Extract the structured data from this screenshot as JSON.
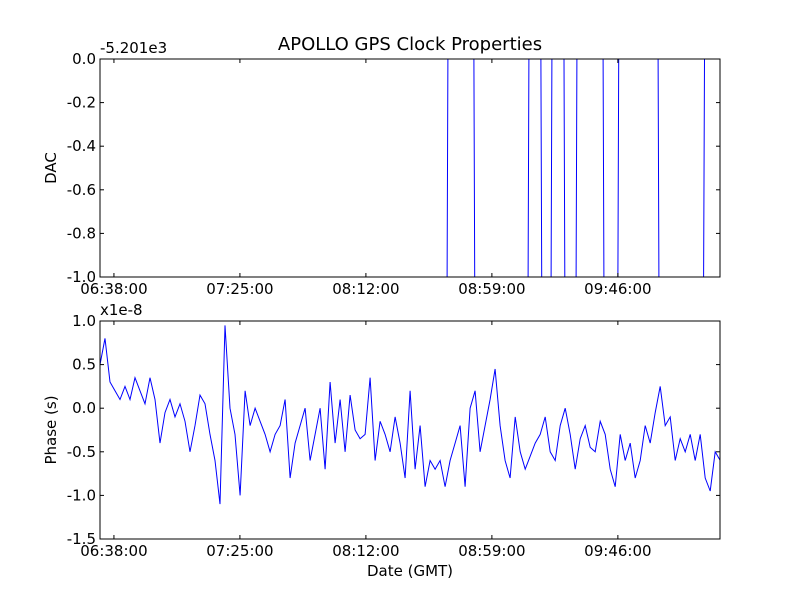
{
  "chart_data": [
    {
      "type": "line",
      "title": "APOLLO GPS Clock Properties",
      "ylabel": "DAC",
      "xlabel": "",
      "offset_text": "-5.201e3",
      "x_units": "minutes since 06:38:00",
      "xlim": [
        -5.2,
        226.1
      ],
      "ylim": [
        -1.0,
        0.0
      ],
      "yticks": [
        0.0,
        -0.2,
        -0.4,
        -0.6,
        -0.8,
        -1.0
      ],
      "ytick_labels": [
        "0.0",
        "-0.2",
        "-0.4",
        "-0.6",
        "-0.8",
        "-1.0"
      ],
      "xticks": [
        0,
        47,
        94,
        141,
        188
      ],
      "xtick_labels": [
        "06:38:00",
        "07:25:00",
        "08:12:00",
        "08:59:00",
        "09:46:00"
      ],
      "color": "#0000ff",
      "series": [
        {
          "name": "DAC",
          "points": [
            [
              -5.2,
              -1
            ],
            [
              124.3,
              -1
            ],
            [
              124.6,
              0
            ],
            [
              134.3,
              0
            ],
            [
              134.6,
              -1
            ],
            [
              154.5,
              -1
            ],
            [
              154.8,
              0
            ],
            [
              159.3,
              0
            ],
            [
              159.6,
              -1
            ],
            [
              163.1,
              -1
            ],
            [
              163.4,
              0
            ],
            [
              167.9,
              0
            ],
            [
              168.2,
              -1
            ],
            [
              172.4,
              -1
            ],
            [
              172.7,
              0
            ],
            [
              182.5,
              0
            ],
            [
              182.8,
              -1
            ],
            [
              188,
              -1
            ],
            [
              188.3,
              0
            ],
            [
              203,
              0
            ],
            [
              203.3,
              -1
            ],
            [
              220,
              -1
            ],
            [
              220.3,
              0
            ],
            [
              226.1,
              0
            ]
          ]
        }
      ]
    },
    {
      "type": "line",
      "title": "",
      "ylabel": "Phase (s)",
      "xlabel": "Date (GMT)",
      "offset_text": "x1e-8",
      "x_units": "minutes since 06:38:00",
      "xlim": [
        -5.2,
        226.1
      ],
      "ylim": [
        -1.5,
        1.0
      ],
      "yticks": [
        1.0,
        0.5,
        0.0,
        -0.5,
        -1.0,
        -1.5
      ],
      "ytick_labels": [
        "1.0",
        "0.5",
        "0.0",
        "-0.5",
        "-1.0",
        "-1.5"
      ],
      "xticks": [
        0,
        47,
        94,
        141,
        188
      ],
      "xtick_labels": [
        "06:38:00",
        "07:25:00",
        "08:12:00",
        "08:59:00",
        "09:46:00"
      ],
      "color": "#0000ff",
      "series": [
        {
          "name": "Phase",
          "x_start": -5.2,
          "x_step": 1.866,
          "values": [
            0.5,
            0.8,
            0.3,
            0.2,
            0.1,
            0.25,
            0.1,
            0.35,
            0.2,
            0.05,
            0.35,
            0.1,
            -0.4,
            -0.05,
            0.1,
            -0.1,
            0.05,
            -0.15,
            -0.5,
            -0.2,
            0.15,
            0.05,
            -0.3,
            -0.6,
            -1.1,
            0.95,
            0.0,
            -0.3,
            -1.0,
            0.2,
            -0.2,
            0.0,
            -0.15,
            -0.3,
            -0.5,
            -0.3,
            -0.2,
            0.1,
            -0.8,
            -0.4,
            -0.2,
            0.0,
            -0.6,
            -0.3,
            0.0,
            -0.7,
            0.3,
            -0.4,
            0.1,
            -0.5,
            0.15,
            -0.25,
            -0.35,
            -0.3,
            0.35,
            -0.6,
            -0.15,
            -0.3,
            -0.5,
            -0.1,
            -0.4,
            -0.8,
            0.2,
            -0.7,
            -0.2,
            -0.9,
            -0.6,
            -0.7,
            -0.6,
            -0.9,
            -0.6,
            -0.4,
            -0.2,
            -0.9,
            0.0,
            0.2,
            -0.5,
            -0.2,
            0.1,
            0.45,
            -0.2,
            -0.6,
            -0.8,
            -0.1,
            -0.5,
            -0.7,
            -0.55,
            -0.4,
            -0.3,
            -0.1,
            -0.5,
            -0.6,
            -0.2,
            0.0,
            -0.3,
            -0.7,
            -0.35,
            -0.2,
            -0.45,
            -0.5,
            -0.15,
            -0.3,
            -0.7,
            -0.9,
            -0.3,
            -0.6,
            -0.4,
            -0.8,
            -0.6,
            -0.2,
            -0.4,
            -0.05,
            0.25,
            -0.2,
            -0.1,
            -0.6,
            -0.35,
            -0.5,
            -0.3,
            -0.6,
            -0.3,
            -0.8,
            -0.95,
            -0.5,
            -0.6
          ]
        }
      ]
    }
  ]
}
